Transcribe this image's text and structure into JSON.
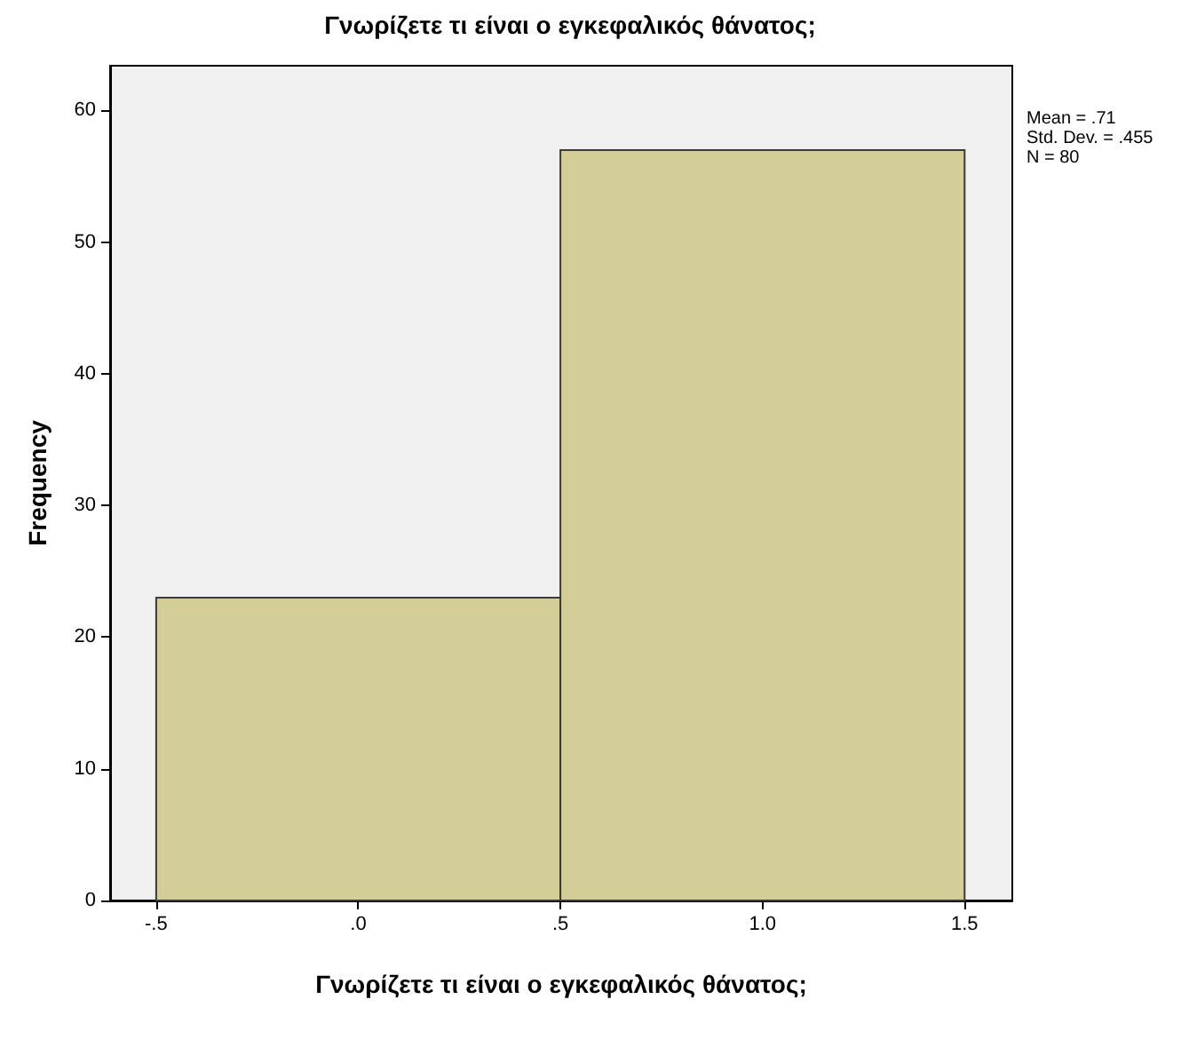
{
  "chart_data": {
    "type": "histogram",
    "title": "Γνωρίζετε τι είναι ο εγκεφαλικός θάνατος;",
    "xlabel": "Γνωρίζετε τι είναι ο εγκεφαλικός θάνατος;",
    "ylabel": "Frequency",
    "bins": [
      -0.5,
      0.5,
      1.5
    ],
    "values": [
      23,
      57
    ],
    "color": "#d3ce97",
    "xlim": [
      -0.614,
      1.618
    ],
    "xticks": [
      {
        "value": -0.5,
        "label": "-.5"
      },
      {
        "value": 0,
        "label": ".0"
      },
      {
        "value": 0.5,
        "label": ".5"
      },
      {
        "value": 1,
        "label": "1.0"
      },
      1.5
    ],
    "ylim": [
      0,
      63.4
    ],
    "yticks": [
      0,
      10,
      20,
      30,
      40,
      50,
      60
    ],
    "grid": false,
    "annotations": [
      "Mean = .71",
      "Std. Dev. = .455",
      "N = 80"
    ]
  }
}
